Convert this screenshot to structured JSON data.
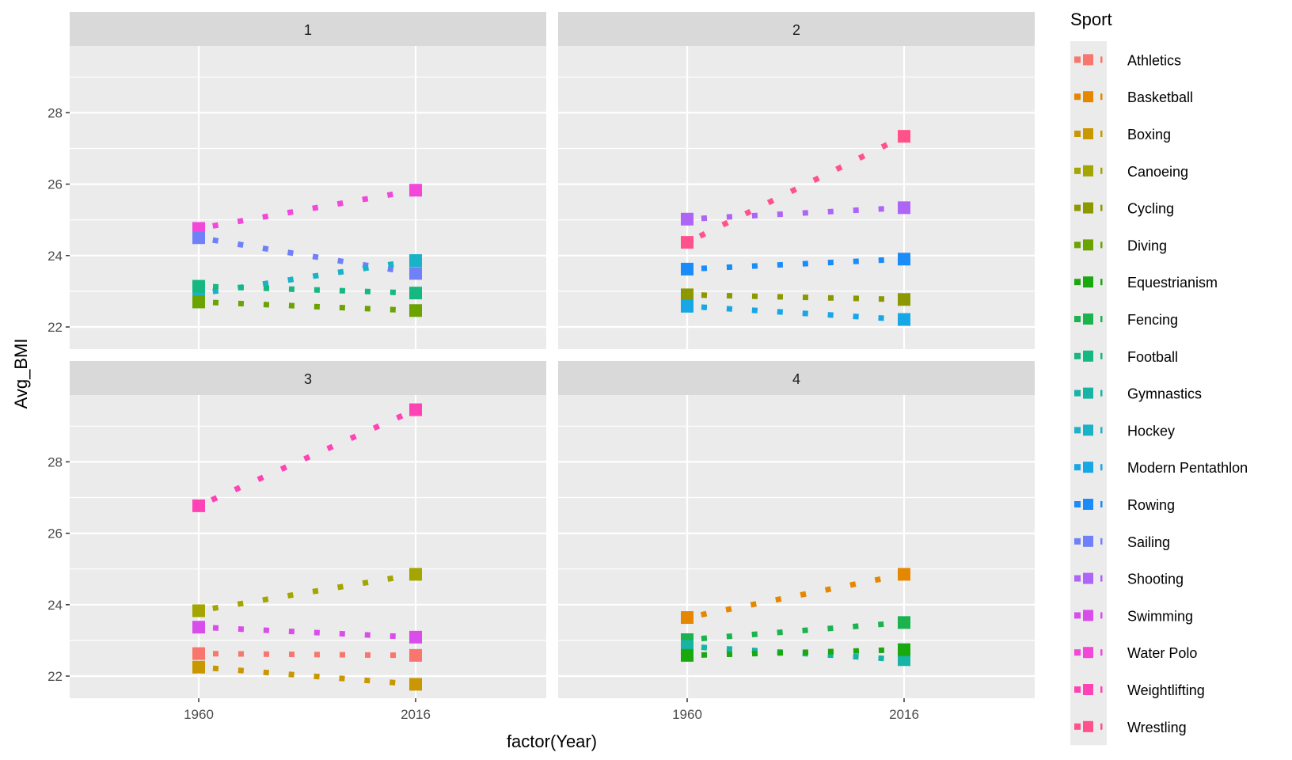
{
  "chart_data": {
    "type": "line",
    "title": "",
    "xlabel": "factor(Year)",
    "ylabel": "Avg_BMI",
    "x": [
      "1960",
      "2016"
    ],
    "y_ticks": [
      22,
      24,
      26,
      28
    ],
    "ylim_top_row": [
      21.4,
      29.8
    ],
    "ylim_bottom_row": [
      21.4,
      29.8
    ],
    "grid": true,
    "linetype": "dotted",
    "legend": {
      "title": "Sport",
      "placement": "right"
    },
    "legend_entries": [
      {
        "name": "Athletics",
        "color": "#F8766D"
      },
      {
        "name": "Basketball",
        "color": "#E58700"
      },
      {
        "name": "Boxing",
        "color": "#C99800"
      },
      {
        "name": "Canoeing",
        "color": "#A3A500"
      },
      {
        "name": "Cycling",
        "color": "#8C9800"
      },
      {
        "name": "Diving",
        "color": "#6BA300"
      },
      {
        "name": "Equestrianism",
        "color": "#1AA80F"
      },
      {
        "name": "Fencing",
        "color": "#1AB34D"
      },
      {
        "name": "Football",
        "color": "#16B882"
      },
      {
        "name": "Gymnastics",
        "color": "#17B3A4"
      },
      {
        "name": "Hockey",
        "color": "#19B2C6"
      },
      {
        "name": "Modern Pentathlon",
        "color": "#17A6E6"
      },
      {
        "name": "Rowing",
        "color": "#1A8CFA"
      },
      {
        "name": "Sailing",
        "color": "#7080F8"
      },
      {
        "name": "Shooting",
        "color": "#AD64F7"
      },
      {
        "name": "Swimming",
        "color": "#D94EEB"
      },
      {
        "name": "Water Polo",
        "color": "#F247D9"
      },
      {
        "name": "Weightlifting",
        "color": "#FF42B4"
      },
      {
        "name": "Wrestling",
        "color": "#FF528A"
      }
    ],
    "panels": [
      {
        "label": "1",
        "series": [
          {
            "name": "Water Polo",
            "values": [
              24.76,
              25.83
            ]
          },
          {
            "name": "Sailing",
            "values": [
              24.5,
              23.5
            ]
          },
          {
            "name": "Hockey",
            "values": [
              22.93,
              23.86
            ]
          },
          {
            "name": "Football",
            "values": [
              23.14,
              22.95
            ]
          },
          {
            "name": "Diving",
            "values": [
              22.7,
              22.46
            ]
          }
        ]
      },
      {
        "label": "2",
        "series": [
          {
            "name": "Wrestling",
            "values": [
              24.37,
              27.34
            ]
          },
          {
            "name": "Shooting",
            "values": [
              25.02,
              25.34
            ]
          },
          {
            "name": "Rowing",
            "values": [
              23.62,
              23.9
            ]
          },
          {
            "name": "Cycling",
            "values": [
              22.9,
              22.77
            ]
          },
          {
            "name": "Modern Pentathlon",
            "values": [
              22.58,
              22.21
            ]
          }
        ]
      },
      {
        "label": "3",
        "series": [
          {
            "name": "Weightlifting",
            "values": [
              26.77,
              29.46
            ]
          },
          {
            "name": "Canoeing",
            "values": [
              23.83,
              24.85
            ]
          },
          {
            "name": "Swimming",
            "values": [
              23.37,
              23.09
            ]
          },
          {
            "name": "Athletics",
            "values": [
              22.63,
              22.58
            ]
          },
          {
            "name": "Boxing",
            "values": [
              22.25,
              21.77
            ]
          }
        ]
      },
      {
        "label": "4",
        "series": [
          {
            "name": "Basketball",
            "values": [
              23.64,
              24.85
            ]
          },
          {
            "name": "Fencing",
            "values": [
              23.02,
              23.5
            ]
          },
          {
            "name": "Gymnastics",
            "values": [
              22.83,
              22.46
            ]
          },
          {
            "name": "Equestrianism",
            "values": [
              22.58,
              22.74
            ]
          }
        ]
      }
    ]
  }
}
